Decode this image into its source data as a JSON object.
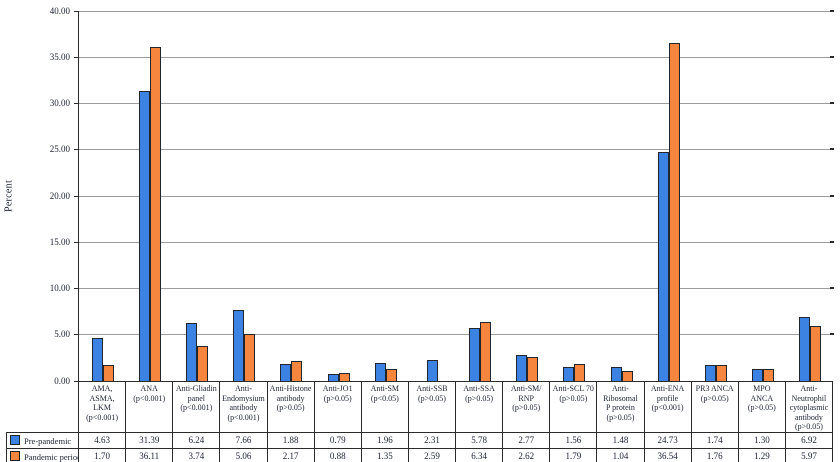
{
  "chart_data": {
    "type": "bar",
    "title": "",
    "ylabel": "Percent",
    "ylim": [
      0,
      40
    ],
    "ytick_step": 5,
    "ytick_labels": [
      "40.00",
      "35.00",
      "30.00",
      "25.00",
      "20.00",
      "15.00",
      "10.00",
      "5.00",
      "0.00"
    ],
    "grid": true,
    "legend_position": "table-left-column",
    "value_format": "2-decimals",
    "categories": [
      {
        "name": "AMA, ASMA, LKM",
        "p": "(p<0.001)",
        "lines": [
          "AMA,",
          "ASMA,",
          "LKM",
          "(p<0.001)"
        ]
      },
      {
        "name": "ANA",
        "p": "(p<0.001)",
        "lines": [
          "ANA",
          "(p<0.001)"
        ]
      },
      {
        "name": "Anti-Gliadin panel",
        "p": "(p<0.001)",
        "lines": [
          "Anti-Gliadin",
          "panel",
          "(p<0.001)"
        ]
      },
      {
        "name": "Anti-Endomysium antibody",
        "p": "(p<0.001)",
        "lines": [
          "Anti-",
          "Endomysium",
          "antibody",
          "(p<0.001)"
        ]
      },
      {
        "name": "Anti-Histone antibody",
        "p": "(p>0.05)",
        "lines": [
          "Anti-Histone",
          "antibody",
          "(p>0.05)"
        ]
      },
      {
        "name": "Anti-JO1",
        "p": "(p>0.05)",
        "lines": [
          "Anti-JO1",
          "(p>0.05)"
        ]
      },
      {
        "name": "Anti-SM",
        "p": "(p<0.05)",
        "lines": [
          "Anti-SM",
          "(p<0.05)"
        ]
      },
      {
        "name": "Anti-SSB",
        "p": "(p>0.05)",
        "lines": [
          "Anti-SSB",
          "(p>0.05)"
        ]
      },
      {
        "name": "Anti-SSA",
        "p": "(p>0.05)",
        "lines": [
          "Anti-SSA",
          "(p>0.05)"
        ]
      },
      {
        "name": "Anti-SM/RNP",
        "p": "(p>0.05)",
        "lines": [
          "Anti-SM/",
          "RNP",
          "(p>0.05)"
        ]
      },
      {
        "name": "Anti-SCL 70",
        "p": "(p>0.05)",
        "lines": [
          "Anti-SCL 70",
          "(p>0.05)"
        ]
      },
      {
        "name": "Anti-Ribosomal P protein",
        "p": "(p>0.05)",
        "lines": [
          "Anti-",
          "Ribosomal",
          "P protein",
          "(p>0.05)"
        ]
      },
      {
        "name": "Anti-ENA profile",
        "p": "(p<0.001)",
        "lines": [
          "Anti-ENA",
          "profile",
          "(p<0.001)"
        ]
      },
      {
        "name": "PR3 ANCA",
        "p": "(p>0.05)",
        "lines": [
          "PR3 ANCA",
          "(p>0.05)"
        ]
      },
      {
        "name": "MPO ANCA",
        "p": "(p>0.05)",
        "lines": [
          "MPO",
          "ANCA",
          "(p>0.05)"
        ]
      },
      {
        "name": "Anti-Neutrophil cytoplasmic antibody",
        "p": "(p>0.05)",
        "lines": [
          "Anti-",
          "Neutrophil",
          "cytoplasmic",
          "antibody",
          "(p>0.05)"
        ]
      }
    ],
    "series": [
      {
        "name": "Pre-pandemic",
        "color": "#3B82E3",
        "values": [
          4.63,
          31.39,
          6.24,
          7.66,
          1.88,
          0.79,
          1.96,
          2.31,
          5.78,
          2.77,
          1.56,
          1.48,
          24.73,
          1.74,
          1.3,
          6.92
        ]
      },
      {
        "name": "Pandemic period",
        "color": "#F6863D",
        "values": [
          1.7,
          36.11,
          3.74,
          5.06,
          2.17,
          0.88,
          1.35,
          2.59,
          6.34,
          2.62,
          1.79,
          1.04,
          36.54,
          1.76,
          1.29,
          5.97
        ]
      }
    ],
    "hidden_bars": [
      {
        "category_index": 7,
        "series_index": 1,
        "note": "orange bar not drawn for Anti-SSB in source chart"
      }
    ],
    "colors": {
      "text": "#1b2132",
      "axis_line": "#2b2b2b",
      "gridline": "#9c9c9c",
      "bar_border": "#21252e",
      "background": "#ffffff"
    }
  }
}
